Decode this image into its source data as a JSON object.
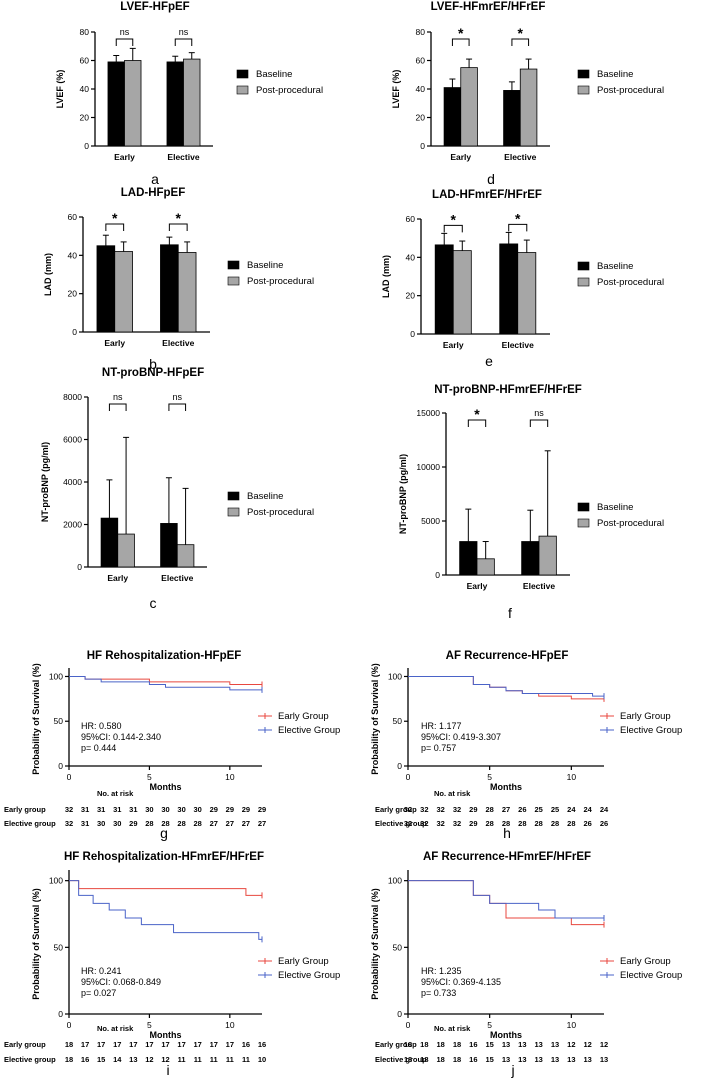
{
  "colors": {
    "baseline": "#000000",
    "post": "#a6a6a6",
    "early": "#e8473f",
    "elective": "#4a63c8"
  },
  "chart_data": [
    {
      "id": "a",
      "type": "bar",
      "panel_label": "a",
      "title": "LVEF-HFpEF",
      "ylabel": "LVEF (%)",
      "ylim": [
        0,
        80
      ],
      "yticks": [
        0,
        20,
        40,
        60,
        80
      ],
      "categories": [
        "Early",
        "Elective"
      ],
      "series": [
        {
          "name": "Baseline",
          "values": [
            59,
            59
          ],
          "errors": [
            4.5,
            4
          ]
        },
        {
          "name": "Post-procedural",
          "values": [
            60,
            61
          ],
          "errors": [
            8.5,
            4.5
          ]
        }
      ],
      "significance": [
        "ns",
        "ns"
      ]
    },
    {
      "id": "d",
      "type": "bar",
      "panel_label": "d",
      "title": "LVEF-HFmrEF/HFrEF",
      "ylabel": "LVEF (%)",
      "ylim": [
        0,
        80
      ],
      "yticks": [
        0,
        20,
        40,
        60,
        80
      ],
      "categories": [
        "Early",
        "Elective"
      ],
      "series": [
        {
          "name": "Baseline",
          "values": [
            41,
            39
          ],
          "errors": [
            6,
            6
          ]
        },
        {
          "name": "Post-procedural",
          "values": [
            55,
            54
          ],
          "errors": [
            6,
            7
          ]
        }
      ],
      "significance": [
        "*",
        "*"
      ]
    },
    {
      "id": "b",
      "type": "bar",
      "panel_label": "b",
      "title": "LAD-HFpEF",
      "ylabel": "LAD (mm)",
      "ylim": [
        0,
        60
      ],
      "yticks": [
        0,
        20,
        40,
        60
      ],
      "categories": [
        "Early",
        "Elective"
      ],
      "series": [
        {
          "name": "Baseline",
          "values": [
            45,
            45.5
          ],
          "errors": [
            5.5,
            4
          ]
        },
        {
          "name": "Post-procedural",
          "values": [
            42,
            41.5
          ],
          "errors": [
            5,
            5.5
          ]
        }
      ],
      "significance": [
        "*",
        "*"
      ]
    },
    {
      "id": "e",
      "type": "bar",
      "panel_label": "e",
      "title": "LAD-HFmrEF/HFrEF",
      "ylabel": "LAD (mm)",
      "ylim": [
        0,
        60
      ],
      "yticks": [
        0,
        20,
        40,
        60
      ],
      "categories": [
        "Early",
        "Elective"
      ],
      "series": [
        {
          "name": "Baseline",
          "values": [
            46.5,
            47
          ],
          "errors": [
            6,
            6
          ]
        },
        {
          "name": "Post-procedural",
          "values": [
            43.5,
            42.5
          ],
          "errors": [
            5,
            6.5
          ]
        }
      ],
      "significance": [
        "*",
        "*"
      ]
    },
    {
      "id": "c",
      "type": "bar",
      "panel_label": "c",
      "title": "NT-proBNP-HFpEF",
      "ylabel": "NT-proBNP (pg/ml)",
      "ylim": [
        0,
        8000
      ],
      "yticks": [
        0,
        2000,
        4000,
        6000,
        8000
      ],
      "categories": [
        "Early",
        "Elective"
      ],
      "series": [
        {
          "name": "Baseline",
          "values": [
            2300,
            2050
          ],
          "errors": [
            1800,
            2150
          ]
        },
        {
          "name": "Post-procedural",
          "values": [
            1550,
            1050
          ],
          "errors": [
            4550,
            2650
          ]
        }
      ],
      "significance": [
        "ns",
        "ns"
      ]
    },
    {
      "id": "f",
      "type": "bar",
      "panel_label": "f",
      "title": "NT-proBNP-HFmrEF/HFrEF",
      "ylabel": "NT-proBNP (pg/ml)",
      "ylim": [
        0,
        15000
      ],
      "yticks": [
        0,
        5000,
        10000,
        15000
      ],
      "categories": [
        "Early",
        "Elective"
      ],
      "series": [
        {
          "name": "Baseline",
          "values": [
            3100,
            3100
          ],
          "errors": [
            3000,
            2900
          ]
        },
        {
          "name": "Post-procedural",
          "values": [
            1500,
            3600
          ],
          "errors": [
            1600,
            7900
          ]
        }
      ],
      "significance": [
        "*",
        "ns"
      ]
    },
    {
      "id": "g",
      "type": "line",
      "subtype": "kaplan-meier",
      "panel_label": "g",
      "title": "HF Rehospitalization-HFpEF",
      "xlabel": "Months",
      "ylabel": "Probability of Survival (%)",
      "xlim": [
        0,
        12
      ],
      "xticks": [
        0,
        5,
        10
      ],
      "ylim": [
        0,
        105
      ],
      "yticks": [
        0,
        50,
        100
      ],
      "series": [
        {
          "name": "Early Group",
          "steps": [
            [
              0,
              100
            ],
            [
              1,
              97
            ],
            [
              2,
              97
            ],
            [
              5,
              94
            ],
            [
              10,
              91
            ],
            [
              12,
              91
            ]
          ],
          "censor": [
            [
              12,
              91
            ]
          ]
        },
        {
          "name": "Elective Group",
          "steps": [
            [
              0,
              100
            ],
            [
              1,
              97
            ],
            [
              2,
              94
            ],
            [
              5,
              91
            ],
            [
              6,
              88
            ],
            [
              10,
              85
            ],
            [
              12,
              85
            ]
          ],
          "censor": [
            [
              12,
              85
            ]
          ]
        }
      ],
      "stats": {
        "hr": "HR: 0.580",
        "ci": "95%CI: 0.144-2.340",
        "p": "p= 0.444"
      },
      "risk_title": "No. at risk",
      "risk_rows": [
        {
          "label": "Early group",
          "values": [
            32,
            31,
            31,
            31,
            31,
            30,
            30,
            30,
            30,
            29,
            29,
            29,
            29
          ]
        },
        {
          "label": "Elective group",
          "values": [
            32,
            31,
            30,
            30,
            29,
            28,
            28,
            28,
            28,
            27,
            27,
            27,
            27
          ]
        }
      ]
    },
    {
      "id": "h",
      "type": "line",
      "subtype": "kaplan-meier",
      "panel_label": "h",
      "title": "AF Recurrence-HFpEF",
      "xlabel": "Months",
      "ylabel": "Probability of Survival (%)",
      "xlim": [
        0,
        12
      ],
      "xticks": [
        0,
        5,
        10
      ],
      "ylim": [
        0,
        105
      ],
      "yticks": [
        0,
        50,
        100
      ],
      "series": [
        {
          "name": "Early Group",
          "steps": [
            [
              0,
              100
            ],
            [
              4,
              91
            ],
            [
              5,
              88
            ],
            [
              6,
              84
            ],
            [
              7,
              81
            ],
            [
              8,
              78
            ],
            [
              10,
              75
            ],
            [
              12,
              75
            ]
          ],
          "censor": [
            [
              12,
              75
            ]
          ]
        },
        {
          "name": "Elective Group",
          "steps": [
            [
              0,
              100
            ],
            [
              4,
              91
            ],
            [
              5,
              88
            ],
            [
              6,
              84
            ],
            [
              7,
              81
            ],
            [
              11.3,
              78
            ],
            [
              12,
              78
            ]
          ],
          "censor": [
            [
              12,
              78
            ]
          ]
        }
      ],
      "stats": {
        "hr": "HR: 1.177",
        "ci": "95%CI: 0.419-3.307",
        "p": "p= 0.757"
      },
      "risk_title": "No. at risk",
      "risk_rows": [
        {
          "label": "Early group",
          "values": [
            32,
            32,
            32,
            32,
            29,
            28,
            27,
            26,
            25,
            25,
            24,
            24,
            24
          ]
        },
        {
          "label": "Elective group",
          "values": [
            32,
            32,
            32,
            32,
            29,
            28,
            28,
            28,
            28,
            28,
            28,
            26,
            26
          ]
        }
      ]
    },
    {
      "id": "i",
      "type": "line",
      "subtype": "kaplan-meier",
      "panel_label": "i",
      "title": "HF Rehospitalization-HFmrEF/HFrEF",
      "xlabel": "Months",
      "ylabel": "Probability of Survival (%)",
      "xlim": [
        0,
        12
      ],
      "xticks": [
        0,
        5,
        10
      ],
      "ylim": [
        0,
        105
      ],
      "yticks": [
        0,
        50,
        100
      ],
      "series": [
        {
          "name": "Early Group",
          "steps": [
            [
              0,
              100
            ],
            [
              0.6,
              94
            ],
            [
              11,
              89
            ],
            [
              12,
              89
            ]
          ],
          "censor": [
            [
              12,
              89
            ]
          ]
        },
        {
          "name": "Elective Group",
          "steps": [
            [
              0,
              100
            ],
            [
              0.6,
              89
            ],
            [
              1.5,
              83
            ],
            [
              2.5,
              78
            ],
            [
              3.5,
              72
            ],
            [
              4.5,
              67
            ],
            [
              6.5,
              61
            ],
            [
              11.8,
              56
            ],
            [
              12,
              56
            ]
          ],
          "censor": [
            [
              12,
              56
            ]
          ]
        }
      ],
      "stats": {
        "hr": "HR: 0.241",
        "ci": "95%CI: 0.068-0.849",
        "p": "p= 0.027"
      },
      "risk_title": "No. at risk",
      "risk_rows": [
        {
          "label": "Early group",
          "values": [
            18,
            17,
            17,
            17,
            17,
            17,
            17,
            17,
            17,
            17,
            17,
            16,
            16
          ]
        },
        {
          "label": "Elective group",
          "values": [
            18,
            16,
            15,
            14,
            13,
            12,
            12,
            11,
            11,
            11,
            11,
            11,
            10
          ]
        }
      ]
    },
    {
      "id": "j",
      "type": "line",
      "subtype": "kaplan-meier",
      "panel_label": "j",
      "title": "AF Recurrence-HFmrEF/HFrEF",
      "xlabel": "Months",
      "ylabel": "Probability of Survival (%)",
      "xlim": [
        0,
        12
      ],
      "xticks": [
        0,
        5,
        10
      ],
      "ylim": [
        0,
        105
      ],
      "yticks": [
        0,
        50,
        100
      ],
      "series": [
        {
          "name": "Early Group",
          "steps": [
            [
              0,
              100
            ],
            [
              4,
              89
            ],
            [
              5,
              83
            ],
            [
              6,
              72
            ],
            [
              10,
              67
            ],
            [
              12,
              67
            ]
          ],
          "censor": [
            [
              12,
              67
            ]
          ]
        },
        {
          "name": "Elective Group",
          "steps": [
            [
              0,
              100
            ],
            [
              4,
              89
            ],
            [
              5,
              83
            ],
            [
              8,
              78
            ],
            [
              9,
              72
            ],
            [
              12,
              72
            ]
          ],
          "censor": [
            [
              12,
              72
            ]
          ]
        }
      ],
      "stats": {
        "hr": "HR: 1.235",
        "ci": "95%CI: 0.369-4.135",
        "p": "p= 0.733"
      },
      "risk_title": "No. at risk",
      "risk_rows": [
        {
          "label": "Early group",
          "values": [
            18,
            18,
            18,
            18,
            16,
            15,
            13,
            13,
            13,
            13,
            12,
            12,
            12
          ]
        },
        {
          "label": "Elective group",
          "values": [
            18,
            18,
            18,
            18,
            16,
            15,
            13,
            13,
            13,
            13,
            13,
            13,
            13
          ]
        }
      ]
    }
  ]
}
